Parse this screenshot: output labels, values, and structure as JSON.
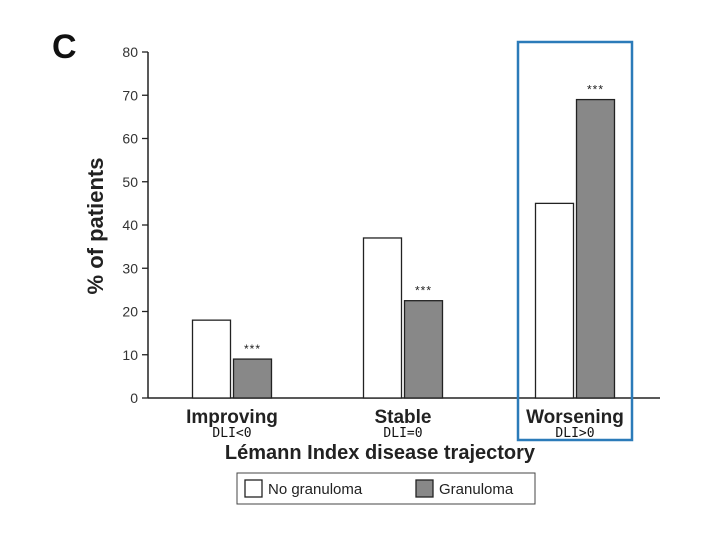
{
  "panel_label": "C",
  "colors": {
    "no_granuloma": "#ffffff",
    "granuloma": "#888888",
    "bar_stroke": "#222222",
    "highlight_box": "#2b7bb9"
  },
  "chart_data": {
    "type": "bar",
    "title": "",
    "xlabel": "Lémann Index disease trajectory",
    "ylabel": "% of patients",
    "ylim": [
      0,
      80
    ],
    "yticks": [
      0,
      10,
      20,
      30,
      40,
      50,
      60,
      70,
      80
    ],
    "categories": [
      "Improving",
      "Stable",
      "Worsening"
    ],
    "category_sublabels": [
      "DLI<0",
      "DLI=0",
      "DLI>0"
    ],
    "series": [
      {
        "name": "No granuloma",
        "values": [
          18,
          37,
          45
        ]
      },
      {
        "name": "Granuloma",
        "values": [
          9,
          22.5,
          69
        ]
      }
    ],
    "annotations": [
      "***",
      "***",
      "***"
    ],
    "highlighted_category": "Worsening",
    "legend_position": "bottom"
  }
}
